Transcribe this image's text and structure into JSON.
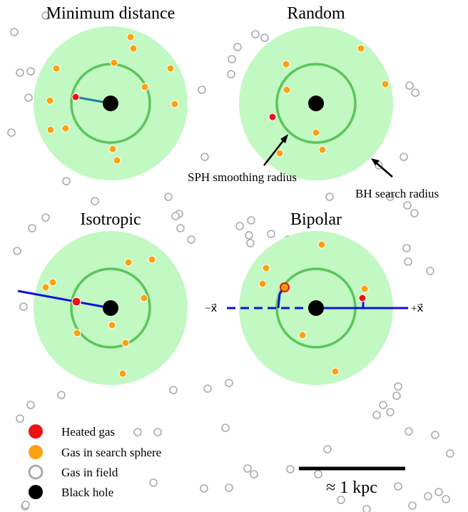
{
  "panels": [
    {
      "id": "minimum-distance",
      "title": "Minimum distance"
    },
    {
      "id": "random",
      "title": "Random"
    },
    {
      "id": "isotropic",
      "title": "Isotropic"
    },
    {
      "id": "bipolar",
      "title": "Bipolar"
    }
  ],
  "annotations": {
    "sph_label": "SPH smoothing radius",
    "bh_label": "BH search radius"
  },
  "bipolar_axis": {
    "minus_label": "−x⃗",
    "plus_label": "+x⃗"
  },
  "legend": [
    {
      "label": "Heated gas",
      "color": "#ee1111"
    },
    {
      "label": "Gas in search sphere",
      "color": "#ffa010"
    },
    {
      "label": "Gas in field",
      "color": "#aaaaaa"
    },
    {
      "label": "Black hole",
      "color": "#000000"
    }
  ],
  "scale_bar": {
    "label": "≈ 1 kpc"
  },
  "colors": {
    "search_sphere": "#c2f8c2",
    "smoothing_circle": "#5bc55b",
    "heated_gas": "#ee1111",
    "search_gas": "#ffa010",
    "field_gas": "#aaaaaa",
    "black_hole": "#000000",
    "direction_line": "#1010dd",
    "minimum_line": "#1a7fa0"
  }
}
